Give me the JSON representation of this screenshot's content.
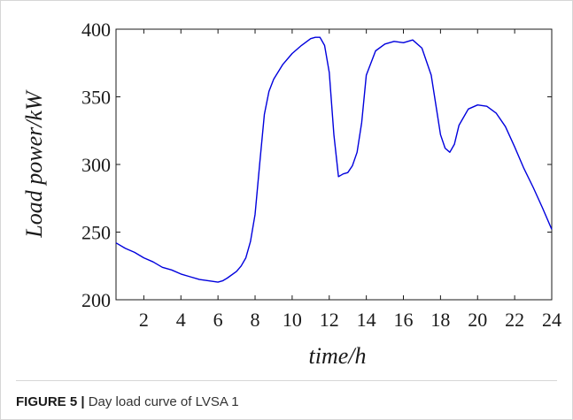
{
  "chart_data": {
    "type": "line",
    "xlabel": "time/h",
    "ylabel": "Load power/kW",
    "xlim": [
      0.5,
      24
    ],
    "ylim": [
      200,
      400
    ],
    "xticks": [
      2,
      4,
      6,
      8,
      10,
      12,
      14,
      16,
      18,
      20,
      22,
      24
    ],
    "yticks": [
      200,
      250,
      300,
      350,
      400
    ],
    "grid": false,
    "line_color": "#0000dd",
    "series": [
      {
        "x": [
          0.5,
          1.0,
          1.5,
          2.0,
          2.5,
          3.0,
          3.5,
          4.0,
          4.5,
          5.0,
          5.5,
          6.0,
          6.25,
          6.5,
          7.0,
          7.25,
          7.5,
          7.75,
          8.0,
          8.25,
          8.5,
          8.75,
          9.0,
          9.5,
          10.0,
          10.5,
          11.0,
          11.25,
          11.5,
          11.75,
          12.0,
          12.25,
          12.5,
          12.75,
          13.0,
          13.25,
          13.5,
          13.75,
          14.0,
          14.5,
          15.0,
          15.5,
          16.0,
          16.5,
          17.0,
          17.5,
          18.0,
          18.25,
          18.5,
          18.75,
          19.0,
          19.5,
          20.0,
          20.5,
          21.0,
          21.5,
          22.0,
          22.5,
          23.0,
          23.5,
          24.0
        ],
        "y": [
          242,
          238,
          235,
          231,
          228,
          224,
          222,
          219,
          217,
          215,
          214,
          213,
          214,
          216,
          221,
          225,
          231,
          243,
          263,
          301,
          337,
          354,
          363,
          374,
          382,
          388,
          393,
          394,
          394,
          388,
          368,
          322,
          291,
          293,
          294,
          299,
          309,
          331,
          366,
          384,
          389,
          391,
          390,
          392,
          386,
          366,
          322,
          312,
          309,
          315,
          329,
          341,
          344,
          343,
          338,
          328,
          313,
          297,
          283,
          268,
          252
        ]
      }
    ]
  },
  "caption": {
    "lead": "FIGURE 5 |",
    "text": "Day load curve of LVSA 1"
  }
}
